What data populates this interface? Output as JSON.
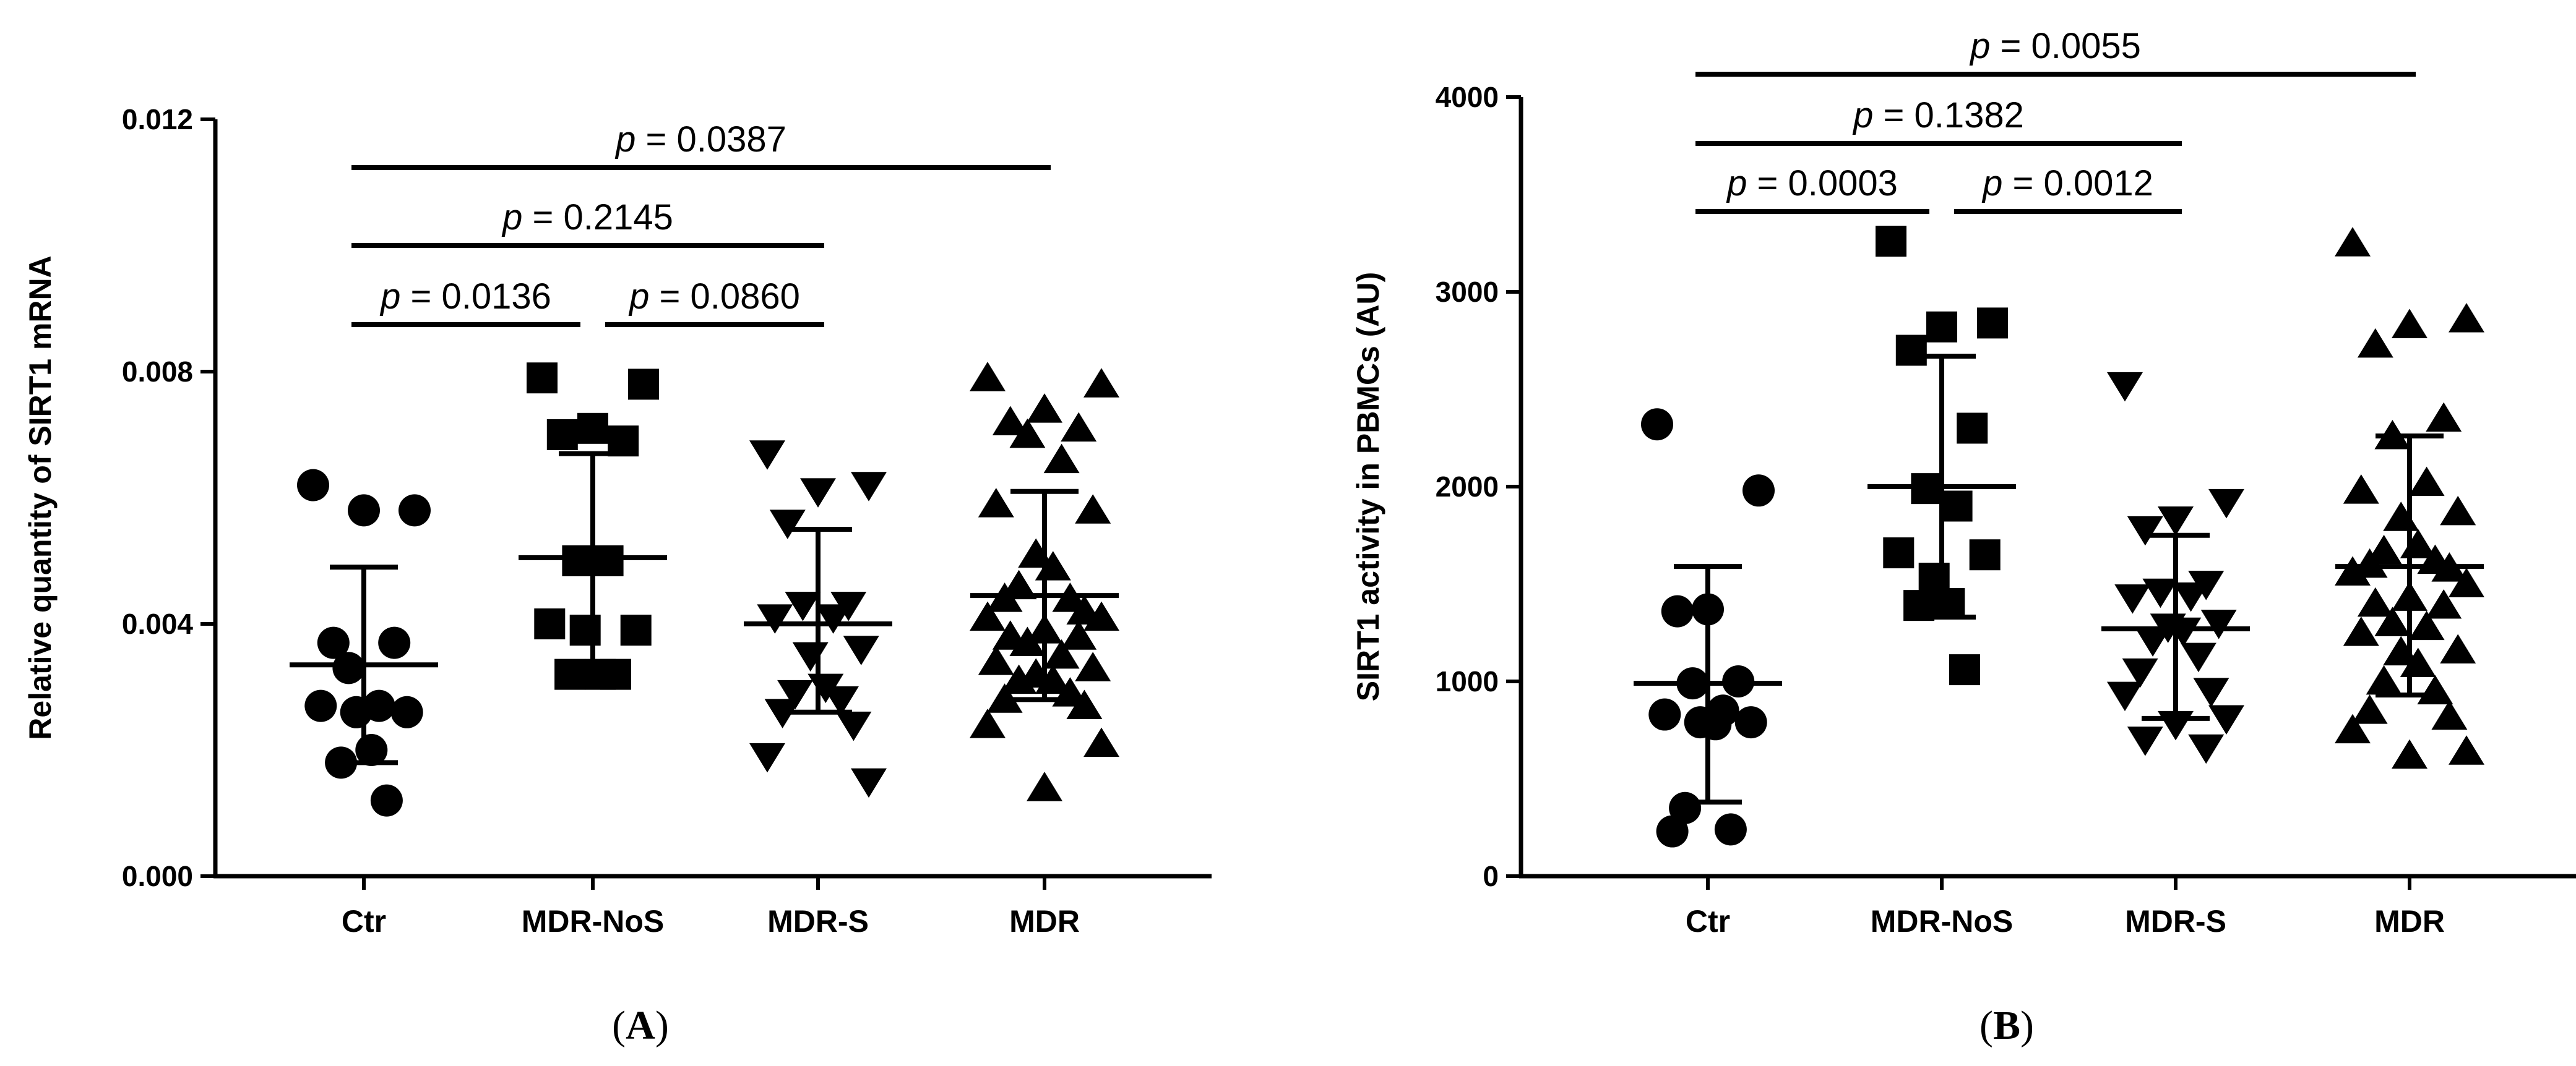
{
  "chart_data": [
    {
      "panel_label": "A",
      "type": "scatter",
      "ylabel": "Relative quantity of SIRT1 mRNA",
      "ylim": [
        0,
        0.012
      ],
      "yticks": [
        0,
        0.004,
        0.008,
        0.012
      ],
      "ytick_labels": [
        "0.000",
        "0.004",
        "0.008",
        "0.012"
      ],
      "categories": [
        "Ctr",
        "MDR-NoS",
        "MDR-S",
        "MDR"
      ],
      "series": [
        {
          "category": "Ctr",
          "marker": "circle",
          "mean": 0.00335,
          "sd_low": 0.0018,
          "sd_high": 0.0049,
          "points": [
            0.0062,
            0.0058,
            0.0058,
            0.0037,
            0.0037,
            0.0033,
            0.0027,
            0.0027,
            0.0026,
            0.0026,
            0.002,
            0.0018,
            0.0012
          ]
        },
        {
          "category": "MDR-NoS",
          "marker": "square",
          "mean": 0.00505,
          "sd_low": 0.0032,
          "sd_high": 0.0067,
          "points": [
            0.0079,
            0.0078,
            0.0071,
            0.007,
            0.0069,
            0.005,
            0.005,
            0.004,
            0.0039,
            0.0039,
            0.0032,
            0.0032,
            0.0032
          ]
        },
        {
          "category": "MDR-S",
          "marker": "triangle-down",
          "mean": 0.004,
          "sd_low": 0.0026,
          "sd_high": 0.0055,
          "points": [
            0.0067,
            0.0062,
            0.0061,
            0.0056,
            0.0043,
            0.0043,
            0.0041,
            0.0041,
            0.0036,
            0.0035,
            0.003,
            0.0029,
            0.0028,
            0.0026,
            0.0024,
            0.0019,
            0.0015
          ]
        },
        {
          "category": "MDR",
          "marker": "triangle-up",
          "mean": 0.00445,
          "sd_low": 0.0028,
          "sd_high": 0.0061,
          "points": [
            0.0079,
            0.0078,
            0.0074,
            0.0072,
            0.0071,
            0.007,
            0.0066,
            0.0059,
            0.0058,
            0.0051,
            0.0049,
            0.0046,
            0.0044,
            0.0044,
            0.0042,
            0.0041,
            0.0041,
            0.0039,
            0.0038,
            0.0038,
            0.0037,
            0.0035,
            0.0034,
            0.0033,
            0.0032,
            0.0031,
            0.0031,
            0.0029,
            0.0028,
            0.0027,
            0.0024,
            0.0021,
            0.0014
          ]
        }
      ],
      "comparisons": [
        {
          "from": "Ctr",
          "to": "MDR-NoS",
          "p_text": "= 0.0136",
          "level": 0
        },
        {
          "from": "MDR-NoS",
          "to": "MDR-S",
          "p_text": "= 0.0860",
          "level": 0
        },
        {
          "from": "Ctr",
          "to": "MDR-S",
          "p_text": "= 0.2145",
          "level": 1
        },
        {
          "from": "Ctr",
          "to": "MDR",
          "p_text": "= 0.0387",
          "level": 2
        }
      ]
    },
    {
      "panel_label": "B",
      "type": "scatter",
      "ylabel": "SIRT1 activity in PBMCs (AU)",
      "ylim": [
        0,
        4000
      ],
      "yticks": [
        0,
        1000,
        2000,
        3000,
        4000
      ],
      "ytick_labels": [
        "0",
        "1000",
        "2000",
        "3000",
        "4000"
      ],
      "categories": [
        "Ctr",
        "MDR-NoS",
        "MDR-S",
        "MDR"
      ],
      "series": [
        {
          "category": "Ctr",
          "marker": "circle",
          "mean": 990,
          "sd_low": 380,
          "sd_high": 1590,
          "points": [
            2320,
            1980,
            1370,
            1360,
            1000,
            990,
            850,
            830,
            790,
            790,
            780,
            350,
            240,
            230
          ]
        },
        {
          "category": "MDR-NoS",
          "marker": "square",
          "mean": 2000,
          "sd_low": 1330,
          "sd_high": 2670,
          "points": [
            3260,
            2840,
            2820,
            2700,
            2300,
            1990,
            1900,
            1660,
            1650,
            1530,
            1400,
            1390,
            1060
          ]
        },
        {
          "category": "MDR-S",
          "marker": "triangle-down",
          "mean": 1270,
          "sd_low": 810,
          "sd_high": 1750,
          "points": [
            2520,
            1920,
            1830,
            1780,
            1500,
            1460,
            1440,
            1430,
            1300,
            1280,
            1260,
            1210,
            1130,
            1050,
            950,
            930,
            810,
            780,
            700,
            660
          ]
        },
        {
          "category": "MDR",
          "marker": "triangle-up",
          "mean": 1590,
          "sd_low": 930,
          "sd_high": 2260,
          "points": [
            3250,
            2860,
            2830,
            2730,
            2350,
            2260,
            2020,
            1980,
            1870,
            1840,
            1700,
            1670,
            1620,
            1600,
            1580,
            1560,
            1500,
            1430,
            1400,
            1390,
            1300,
            1280,
            1250,
            1160,
            1150,
            1090,
            1000,
            950,
            850,
            820,
            750,
            640,
            620
          ]
        }
      ],
      "comparisons": [
        {
          "from": "Ctr",
          "to": "MDR-NoS",
          "p_text": "= 0.0003",
          "level": 0
        },
        {
          "from": "MDR-NoS",
          "to": "MDR-S",
          "p_text": "= 0.0012",
          "level": 0
        },
        {
          "from": "Ctr",
          "to": "MDR-S",
          "p_text": "= 0.1382",
          "level": 1
        },
        {
          "from": "Ctr",
          "to": "MDR",
          "p_text": "= 0.0055",
          "level": 2
        }
      ]
    }
  ]
}
